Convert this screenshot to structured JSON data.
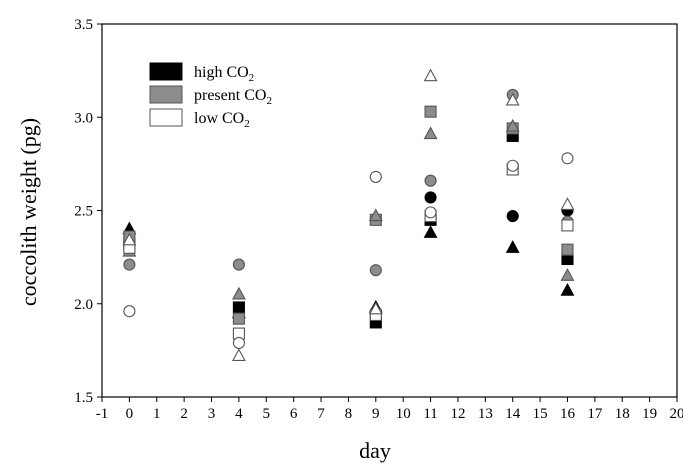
{
  "chart_data": {
    "type": "scatter",
    "title": "",
    "xlabel": "day",
    "ylabel": "coccolith weight (pg)",
    "xlim": [
      -1,
      20
    ],
    "ylim": [
      1.5,
      3.5
    ],
    "x_ticks": [
      "-1",
      "0",
      "1",
      "2",
      "3",
      "4",
      "5",
      "6",
      "7",
      "8",
      "9",
      "10",
      "11",
      "12",
      "13",
      "14",
      "15",
      "16",
      "17",
      "18",
      "19",
      "20"
    ],
    "y_ticks": [
      "1.5",
      "2.0",
      "2.5",
      "3.0",
      "3.5"
    ],
    "grid": false,
    "legend_position": "top-left",
    "legend": [
      {
        "label": "high CO",
        "sub": "2",
        "fill": "#000000"
      },
      {
        "label": "present CO",
        "sub": "2",
        "fill": "#8c8c8c"
      },
      {
        "label": "low CO",
        "sub": "2",
        "fill": "#ffffff"
      }
    ],
    "series": [
      {
        "group": "high",
        "marker": "square",
        "fill": "#000000",
        "points": [
          [
            0,
            2.32
          ],
          [
            4,
            1.98
          ],
          [
            9,
            1.9
          ],
          [
            11,
            2.45
          ],
          [
            14,
            2.9
          ],
          [
            16,
            2.24
          ]
        ]
      },
      {
        "group": "high",
        "marker": "circle",
        "fill": "#000000",
        "points": [
          [
            0,
            2.33
          ],
          [
            4,
            1.93
          ],
          [
            9,
            1.95
          ],
          [
            11,
            2.57
          ],
          [
            14,
            2.47
          ],
          [
            16,
            2.5
          ]
        ]
      },
      {
        "group": "high",
        "marker": "triangle",
        "fill": "#000000",
        "points": [
          [
            0,
            2.4
          ],
          [
            4,
            1.95
          ],
          [
            9,
            1.98
          ],
          [
            11,
            2.38
          ],
          [
            14,
            2.3
          ],
          [
            16,
            2.07
          ]
        ]
      },
      {
        "group": "present",
        "marker": "square",
        "fill": "#8c8c8c",
        "points": [
          [
            0,
            2.36
          ],
          [
            4,
            1.92
          ],
          [
            9,
            2.45
          ],
          [
            11,
            3.03
          ],
          [
            14,
            2.94
          ],
          [
            16,
            2.29
          ]
        ]
      },
      {
        "group": "present",
        "marker": "circle",
        "fill": "#8c8c8c",
        "points": [
          [
            0,
            2.21
          ],
          [
            4,
            2.21
          ],
          [
            9,
            2.18
          ],
          [
            11,
            2.66
          ],
          [
            14,
            3.12
          ],
          [
            16,
            2.44
          ]
        ]
      },
      {
        "group": "present",
        "marker": "triangle",
        "fill": "#8c8c8c",
        "points": [
          [
            0,
            2.28
          ],
          [
            4,
            2.05
          ],
          [
            9,
            2.47
          ],
          [
            11,
            2.91
          ],
          [
            14,
            2.95
          ],
          [
            16,
            2.15
          ]
        ]
      },
      {
        "group": "low",
        "marker": "square",
        "fill": "#ffffff",
        "points": [
          [
            0,
            2.3
          ],
          [
            4,
            1.84
          ],
          [
            9,
            1.94
          ],
          [
            11,
            2.47
          ],
          [
            14,
            2.72
          ],
          [
            16,
            2.42
          ]
        ]
      },
      {
        "group": "low",
        "marker": "circle",
        "fill": "#ffffff",
        "points": [
          [
            0,
            1.96
          ],
          [
            4,
            1.79
          ],
          [
            9,
            2.68
          ],
          [
            11,
            2.49
          ],
          [
            14,
            2.74
          ],
          [
            16,
            2.78
          ]
        ]
      },
      {
        "group": "low",
        "marker": "triangle",
        "fill": "#ffffff",
        "points": [
          [
            0,
            2.34
          ],
          [
            4,
            1.72
          ],
          [
            9,
            1.97
          ],
          [
            11,
            3.22
          ],
          [
            14,
            3.09
          ],
          [
            16,
            2.53
          ]
        ]
      }
    ]
  }
}
